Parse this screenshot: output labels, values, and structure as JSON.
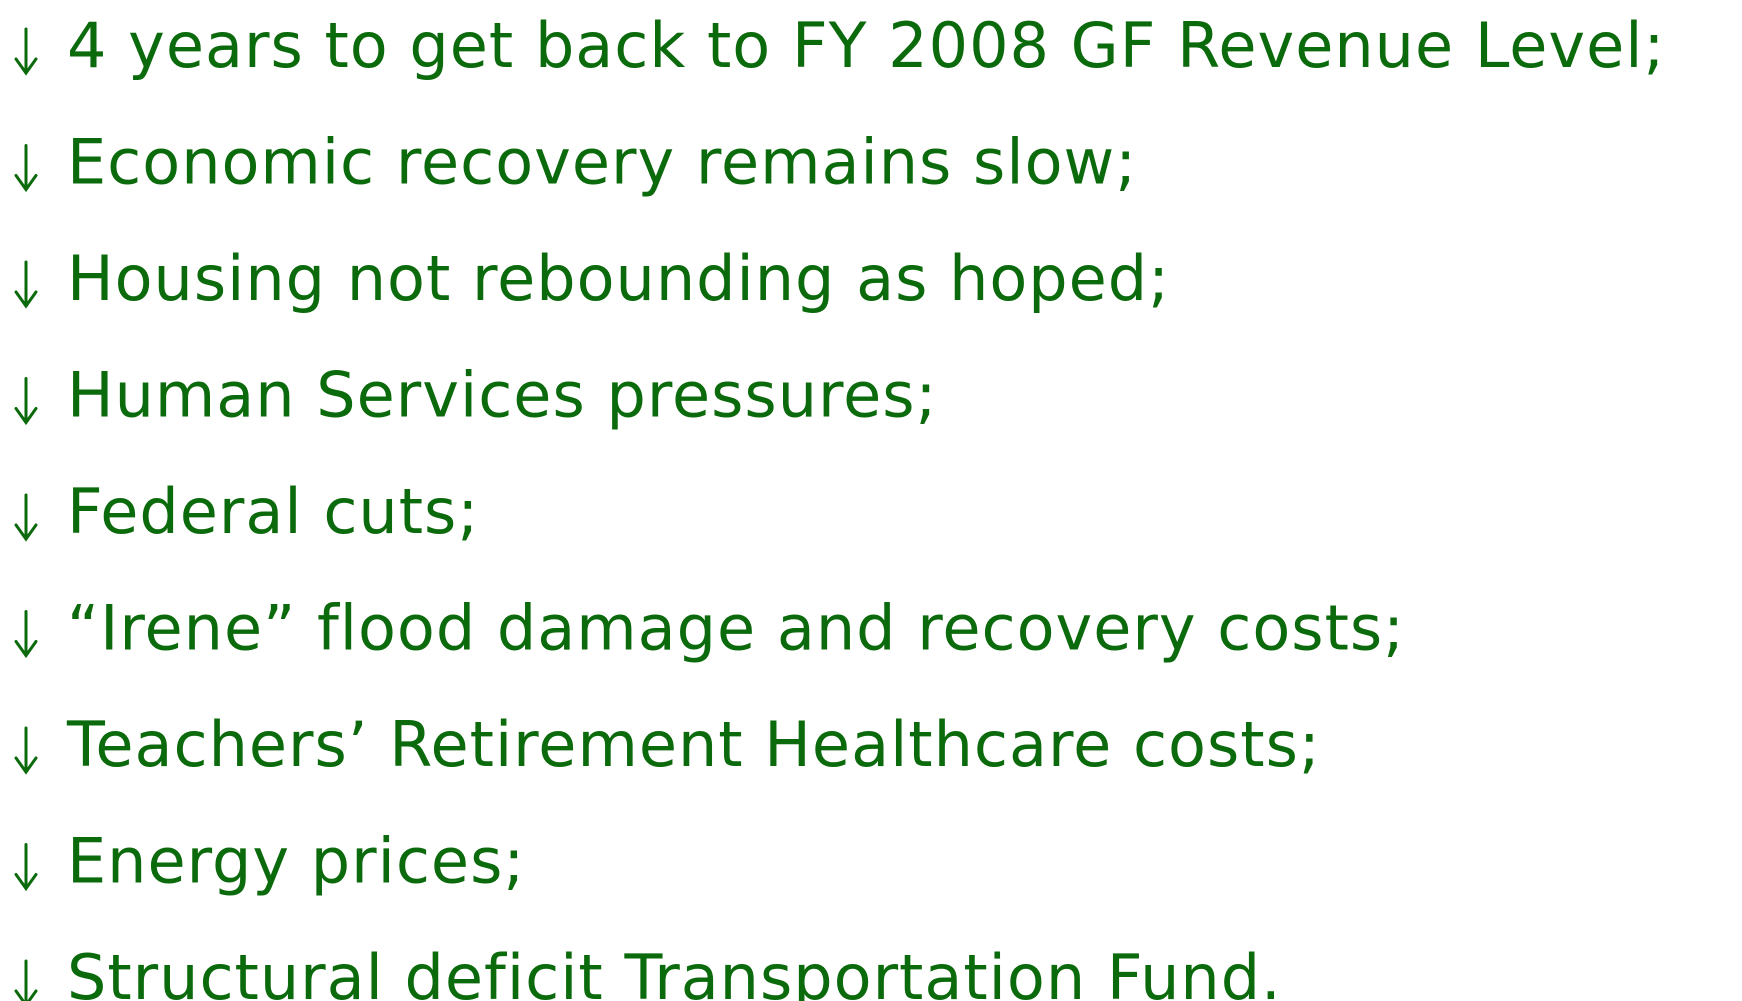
{
  "items": [
    "4 years to get back to FY 2008 GF Revenue Level;",
    "Economic recovery remains slow;",
    "Housing not rebounding as hoped;",
    "Human Services pressures;",
    "Federal cuts;",
    "“Irene” flood damage and recovery costs;",
    "Teachers’ Retirement Healthcare costs;",
    "Energy prices;",
    "Structural deficit Transportation Fund."
  ]
}
